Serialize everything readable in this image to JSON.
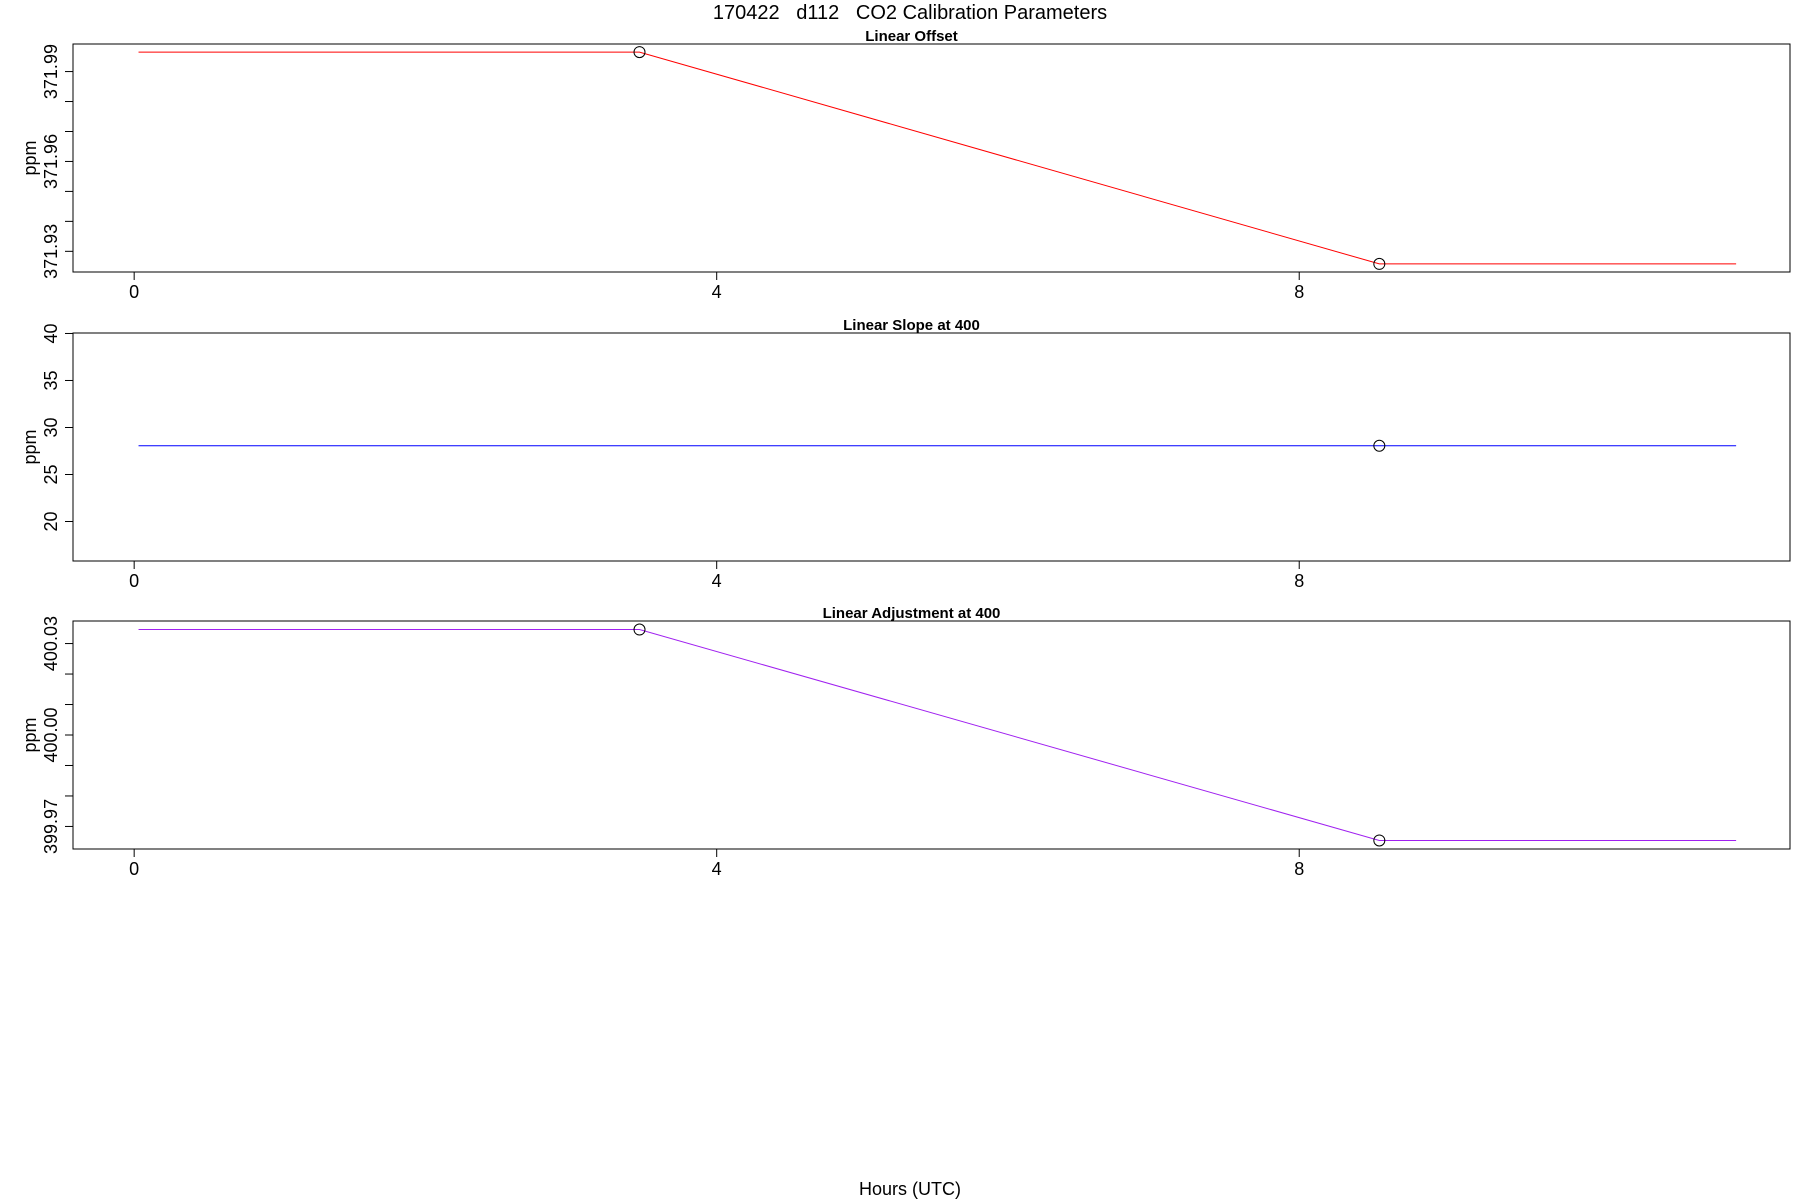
{
  "figure": {
    "title": "170422   d112   CO2 Calibration Parameters",
    "xlabel": "Hours (UTC)"
  },
  "chart_data": [
    {
      "type": "line",
      "title": "Linear Offset",
      "xlabel": "",
      "ylabel": "ppm",
      "color": "#ff0000",
      "xlim": [
        -0.42,
        11.37
      ],
      "ylim": [
        371.9231,
        371.9992
      ],
      "x_ticks": [
        0,
        4,
        8
      ],
      "x_tick_labels": [
        "0",
        "4",
        "8"
      ],
      "y_ticks": [
        371.93,
        371.94,
        371.95,
        371.96,
        371.97,
        371.98,
        371.99
      ],
      "y_tick_labels": [
        "371.93",
        "",
        "",
        "371.96",
        "",
        "",
        "371.99"
      ],
      "x": [
        0.03,
        3.47,
        8.55,
        11.0
      ],
      "y": [
        371.9965,
        371.9965,
        371.9258,
        371.9258
      ],
      "markers": [
        {
          "x": 3.47,
          "y": 371.9965
        },
        {
          "x": 8.55,
          "y": 371.9258
        }
      ]
    },
    {
      "type": "line",
      "title": "Linear Slope at 400",
      "xlabel": "",
      "ylabel": "ppm",
      "color": "#0000ff",
      "xlim": [
        -0.42,
        11.37
      ],
      "ylim": [
        15.8,
        40.05
      ],
      "x_ticks": [
        0,
        4,
        8
      ],
      "x_tick_labels": [
        "0",
        "4",
        "8"
      ],
      "y_ticks": [
        20,
        25,
        30,
        35,
        40
      ],
      "y_tick_labels": [
        "20",
        "25",
        "30",
        "35",
        "40"
      ],
      "x": [
        0.03,
        11.0
      ],
      "y": [
        28.06,
        28.06
      ],
      "markers": [
        {
          "x": 8.55,
          "y": 28.06
        }
      ]
    },
    {
      "type": "line",
      "title": "Linear Adjustment at 400",
      "xlabel": "",
      "ylabel": "ppm",
      "color": "#a020f0",
      "xlim": [
        -0.42,
        11.37
      ],
      "ylim": [
        399.9626,
        400.0374
      ],
      "x_ticks": [
        0,
        4,
        8
      ],
      "x_tick_labels": [
        "0",
        "4",
        "8"
      ],
      "y_ticks": [
        399.97,
        399.98,
        399.99,
        400.0,
        400.01,
        400.02,
        400.03
      ],
      "y_tick_labels": [
        "399.97",
        "",
        "",
        "400.00",
        "",
        "",
        "400.03"
      ],
      "x": [
        0.03,
        3.47,
        8.55,
        11.0
      ],
      "y": [
        400.0346,
        400.0346,
        399.9654,
        399.9654
      ],
      "markers": [
        {
          "x": 3.47,
          "y": 400.0346
        },
        {
          "x": 8.55,
          "y": 399.9654
        }
      ]
    }
  ]
}
